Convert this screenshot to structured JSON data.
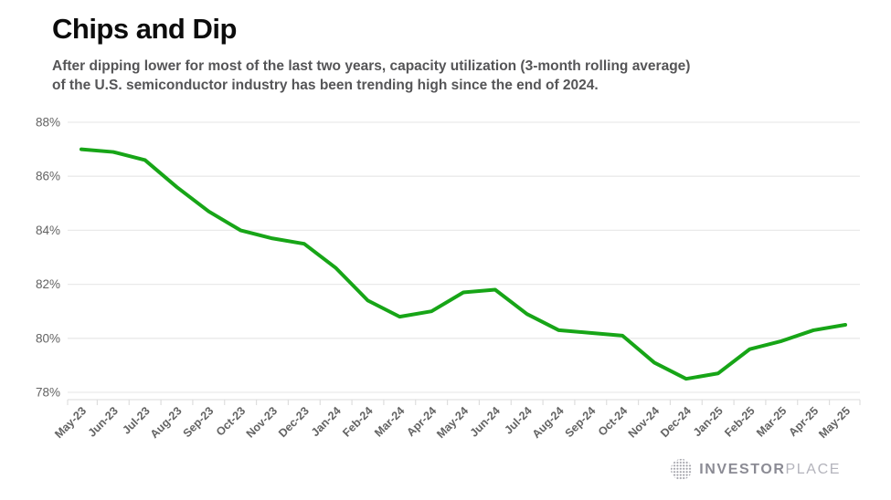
{
  "header": {
    "title": "Chips and Dip",
    "subtitle_line1": "After dipping lower for most of the last two years, capacity utilization (3-month rolling average)",
    "subtitle_line2": "of the U.S. semiconductor industry has been trending high since the end of 2024."
  },
  "chart_data": {
    "type": "line",
    "title": "Chips and Dip",
    "x": [
      "May-23",
      "Jun-23",
      "Jul-23",
      "Aug-23",
      "Sep-23",
      "Oct-23",
      "Nov-23",
      "Dec-23",
      "Jan-24",
      "Feb-24",
      "Mar-24",
      "Apr-24",
      "May-24",
      "Jun-24",
      "Jul-24",
      "Aug-24",
      "Sep-24",
      "Oct-24",
      "Nov-24",
      "Dec-24",
      "Jan-25",
      "Feb-25",
      "Mar-25",
      "Apr-25",
      "May-25"
    ],
    "series": [
      {
        "name": "Capacity utilization (3-month rolling average)",
        "values": [
          87.0,
          86.9,
          86.6,
          85.6,
          84.7,
          84.0,
          83.7,
          83.5,
          82.6,
          81.4,
          80.8,
          81.0,
          81.7,
          81.8,
          80.9,
          80.3,
          80.2,
          80.1,
          79.1,
          78.5,
          78.7,
          79.6,
          79.9,
          80.3,
          80.5
        ]
      }
    ],
    "ylim": [
      78,
      88
    ],
    "yticks": [
      78,
      80,
      82,
      84,
      86,
      88
    ],
    "ytick_labels": [
      "78%",
      "80%",
      "82%",
      "84%",
      "86%",
      "88%"
    ],
    "grid": true,
    "legend": false,
    "line_color": "#17a517",
    "grid_color": "#e9e9e9",
    "axis_line_color": "#e2e2e2",
    "tick_color": "#dedede",
    "axis_text_color": "#636363"
  },
  "footer": {
    "logo_icon": "globe-dots-icon",
    "logo_primary": "INVESTOR",
    "logo_secondary": "PLACE"
  }
}
